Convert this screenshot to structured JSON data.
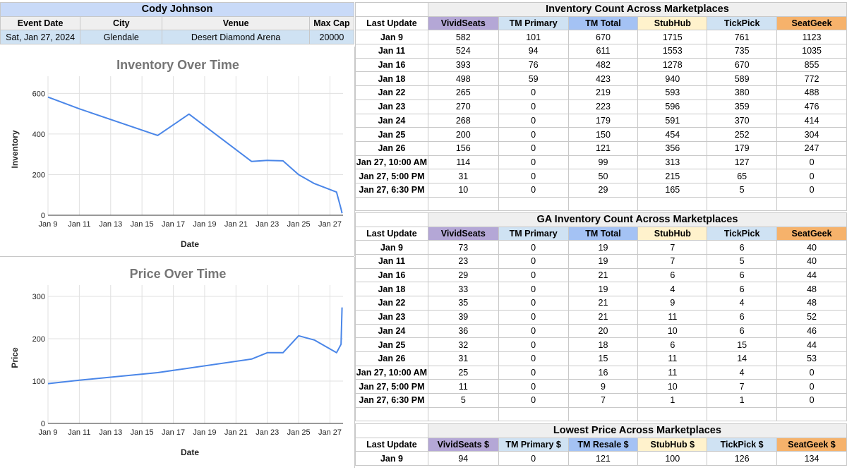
{
  "event": {
    "artist": "Cody Johnson",
    "headers": [
      "Event Date",
      "City",
      "Venue",
      "Max Cap"
    ],
    "values": [
      "Sat, Jan 27, 2024",
      "Glendale",
      "Desert Diamond Arena",
      "20000"
    ]
  },
  "colors": {
    "vividseats": "#b4a7d6",
    "tm_primary": "#cfe2f3",
    "tm_total": "#a4c2f4",
    "stubhub": "#fff2cc",
    "tickpick": "#cfe2f3",
    "seatgeek": "#f6b26b",
    "line": "#4a86e8"
  },
  "inventory_table": {
    "title": "Inventory Count Across Marketplaces",
    "columns": [
      "Last Update",
      "VividSeats",
      "TM Primary",
      "TM Total",
      "StubHub",
      "TickPick",
      "SeatGeek"
    ],
    "rows": [
      [
        "Jan 9",
        "582",
        "101",
        "670",
        "1715",
        "761",
        "1123"
      ],
      [
        "Jan 11",
        "524",
        "94",
        "611",
        "1553",
        "735",
        "1035"
      ],
      [
        "Jan 16",
        "393",
        "76",
        "482",
        "1278",
        "670",
        "855"
      ],
      [
        "Jan 18",
        "498",
        "59",
        "423",
        "940",
        "589",
        "772"
      ],
      [
        "Jan 22",
        "265",
        "0",
        "219",
        "593",
        "380",
        "488"
      ],
      [
        "Jan 23",
        "270",
        "0",
        "223",
        "596",
        "359",
        "476"
      ],
      [
        "Jan 24",
        "268",
        "0",
        "179",
        "591",
        "370",
        "414"
      ],
      [
        "Jan 25",
        "200",
        "0",
        "150",
        "454",
        "252",
        "304"
      ],
      [
        "Jan 26",
        "156",
        "0",
        "121",
        "356",
        "179",
        "247"
      ],
      [
        "Jan 27, 10:00 AM",
        "114",
        "0",
        "99",
        "313",
        "127",
        "0"
      ],
      [
        "Jan 27, 5:00 PM",
        "31",
        "0",
        "50",
        "215",
        "65",
        "0"
      ],
      [
        "Jan 27, 6:30 PM",
        "10",
        "0",
        "29",
        "165",
        "5",
        "0"
      ]
    ]
  },
  "ga_table": {
    "title": "GA Inventory Count Across Marketplaces",
    "columns": [
      "Last Update",
      "VividSeats",
      "TM Primary",
      "TM Total",
      "StubHub",
      "TickPick",
      "SeatGeek"
    ],
    "rows": [
      [
        "Jan 9",
        "73",
        "0",
        "19",
        "7",
        "6",
        "40"
      ],
      [
        "Jan 11",
        "23",
        "0",
        "19",
        "7",
        "5",
        "40"
      ],
      [
        "Jan 16",
        "29",
        "0",
        "21",
        "6",
        "6",
        "44"
      ],
      [
        "Jan 18",
        "33",
        "0",
        "19",
        "4",
        "6",
        "48"
      ],
      [
        "Jan 22",
        "35",
        "0",
        "21",
        "9",
        "4",
        "48"
      ],
      [
        "Jan 23",
        "39",
        "0",
        "21",
        "11",
        "6",
        "52"
      ],
      [
        "Jan 24",
        "36",
        "0",
        "20",
        "10",
        "6",
        "46"
      ],
      [
        "Jan 25",
        "32",
        "0",
        "18",
        "6",
        "15",
        "44"
      ],
      [
        "Jan 26",
        "31",
        "0",
        "15",
        "11",
        "14",
        "53"
      ],
      [
        "Jan 27, 10:00 AM",
        "25",
        "0",
        "16",
        "11",
        "4",
        "0"
      ],
      [
        "Jan 27, 5:00 PM",
        "11",
        "0",
        "9",
        "10",
        "7",
        "0"
      ],
      [
        "Jan 27, 6:30 PM",
        "5",
        "0",
        "7",
        "1",
        "1",
        "0"
      ]
    ]
  },
  "price_table": {
    "title": "Lowest Price Across Marketplaces",
    "columns": [
      "Last Update",
      "VividSeats $",
      "TM Primary $",
      "TM Resale $",
      "StubHub $",
      "TickPick $",
      "SeatGeek $"
    ],
    "rows": [
      [
        "Jan 9",
        "94",
        "0",
        "121",
        "100",
        "126",
        "134"
      ]
    ]
  },
  "chart_data": [
    {
      "type": "line",
      "title": "Inventory Over Time",
      "xlabel": "Date",
      "ylabel": "Inventory",
      "x_ticks": [
        "Jan 9",
        "Jan 11",
        "Jan 13",
        "Jan 15",
        "Jan 17",
        "Jan 19",
        "Jan 21",
        "Jan 23",
        "Jan 25",
        "Jan 27"
      ],
      "y_ticks": [
        "0",
        "200",
        "400",
        "600"
      ],
      "ylim": [
        0,
        650
      ],
      "xlim": [
        "2024-01-09",
        "2024-01-27T20:00"
      ],
      "grid": true,
      "series": [
        {
          "x": [
            "2024-01-09",
            "2024-01-11",
            "2024-01-16",
            "2024-01-18",
            "2024-01-22",
            "2024-01-23",
            "2024-01-24",
            "2024-01-25",
            "2024-01-26",
            "2024-01-27T10:00",
            "2024-01-27T17:00",
            "2024-01-27T18:30"
          ],
          "values": [
            582,
            524,
            393,
            498,
            265,
            270,
            268,
            200,
            156,
            114,
            31,
            10
          ]
        }
      ]
    },
    {
      "type": "line",
      "title": "Price Over Time",
      "xlabel": "Date",
      "ylabel": "Price",
      "x_ticks": [
        "Jan 9",
        "Jan 11",
        "Jan 13",
        "Jan 15",
        "Jan 17",
        "Jan 19",
        "Jan 21",
        "Jan 23",
        "Jan 25",
        "Jan 27"
      ],
      "y_ticks": [
        "0",
        "100",
        "200",
        "300"
      ],
      "ylim": [
        0,
        310
      ],
      "xlim": [
        "2024-01-09",
        "2024-01-27T20:00"
      ],
      "grid": true,
      "series": [
        {
          "x": [
            "2024-01-09",
            "2024-01-11",
            "2024-01-16",
            "2024-01-22",
            "2024-01-23",
            "2024-01-24",
            "2024-01-25",
            "2024-01-26",
            "2024-01-27T10:00",
            "2024-01-27T17:00",
            "2024-01-27T18:30"
          ],
          "values": [
            94,
            102,
            120,
            152,
            167,
            167,
            207,
            197,
            167,
            187,
            274
          ]
        }
      ]
    }
  ]
}
